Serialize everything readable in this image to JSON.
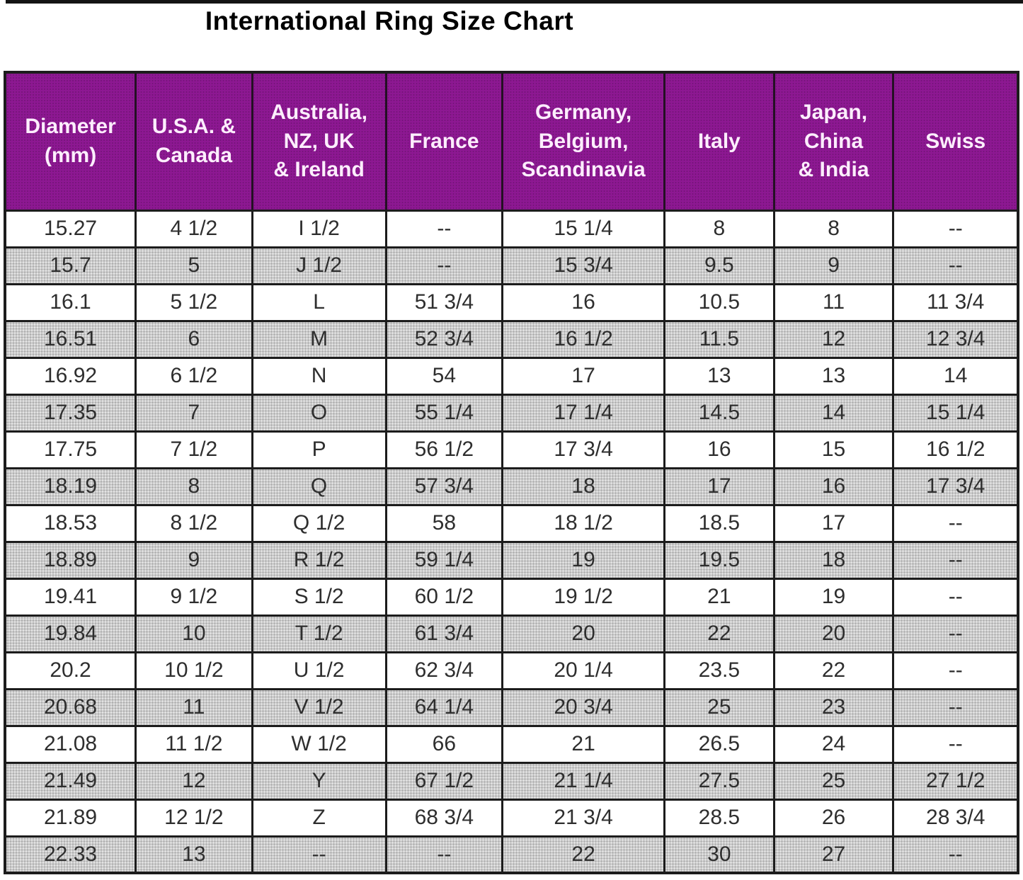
{
  "title": "International Ring Size Chart",
  "colors": {
    "header_bg": "#8d1892",
    "header_text": "#fdeefd",
    "stripe_bg": "#cbcbcb",
    "border": "#1c1c1c",
    "cell_text": "#2e2e2e",
    "title_text": "#000000"
  },
  "chart_data": {
    "type": "table",
    "title": "International Ring Size Chart",
    "columns": [
      "Diameter\n(mm)",
      "U.S.A. &\nCanada",
      "Australia,\nNZ, UK\n& Ireland",
      "France",
      "Germany,\nBelgium,\nScandinavia",
      "Italy",
      "Japan,\nChina\n& India",
      "Swiss"
    ],
    "missing_value_marker": "--",
    "layout_hints": {
      "header_style": "purple band, white bold text",
      "row_striping": "alternate white / halftone gray starting with white",
      "grid": "black cell borders"
    },
    "rows": [
      [
        "15.27",
        "4 1/2",
        "I 1/2",
        "--",
        "15 1/4",
        "8",
        "8",
        "--"
      ],
      [
        "15.7",
        "5",
        "J 1/2",
        "--",
        "15 3/4",
        "9.5",
        "9",
        "--"
      ],
      [
        "16.1",
        "5 1/2",
        "L",
        "51 3/4",
        "16",
        "10.5",
        "11",
        "11 3/4"
      ],
      [
        "16.51",
        "6",
        "M",
        "52 3/4",
        "16 1/2",
        "11.5",
        "12",
        "12 3/4"
      ],
      [
        "16.92",
        "6 1/2",
        "N",
        "54",
        "17",
        "13",
        "13",
        "14"
      ],
      [
        "17.35",
        "7",
        "O",
        "55 1/4",
        "17 1/4",
        "14.5",
        "14",
        "15 1/4"
      ],
      [
        "17.75",
        "7 1/2",
        "P",
        "56 1/2",
        "17 3/4",
        "16",
        "15",
        "16 1/2"
      ],
      [
        "18.19",
        "8",
        "Q",
        "57 3/4",
        "18",
        "17",
        "16",
        "17 3/4"
      ],
      [
        "18.53",
        "8 1/2",
        "Q 1/2",
        "58",
        "18 1/2",
        "18.5",
        "17",
        "--"
      ],
      [
        "18.89",
        "9",
        "R 1/2",
        "59 1/4",
        "19",
        "19.5",
        "18",
        "--"
      ],
      [
        "19.41",
        "9 1/2",
        "S 1/2",
        "60 1/2",
        "19 1/2",
        "21",
        "19",
        "--"
      ],
      [
        "19.84",
        "10",
        "T 1/2",
        "61 3/4",
        "20",
        "22",
        "20",
        "--"
      ],
      [
        "20.2",
        "10 1/2",
        "U 1/2",
        "62 3/4",
        "20 1/4",
        "23.5",
        "22",
        "--"
      ],
      [
        "20.68",
        "11",
        "V 1/2",
        "64 1/4",
        "20 3/4",
        "25",
        "23",
        "--"
      ],
      [
        "21.08",
        "11 1/2",
        "W 1/2",
        "66",
        "21",
        "26.5",
        "24",
        "--"
      ],
      [
        "21.49",
        "12",
        "Y",
        "67 1/2",
        "21 1/4",
        "27.5",
        "25",
        "27 1/2"
      ],
      [
        "21.89",
        "12 1/2",
        "Z",
        "68 3/4",
        "21 3/4",
        "28.5",
        "26",
        "28 3/4"
      ],
      [
        "22.33",
        "13",
        "--",
        "--",
        "22",
        "30",
        "27",
        "--"
      ]
    ]
  }
}
